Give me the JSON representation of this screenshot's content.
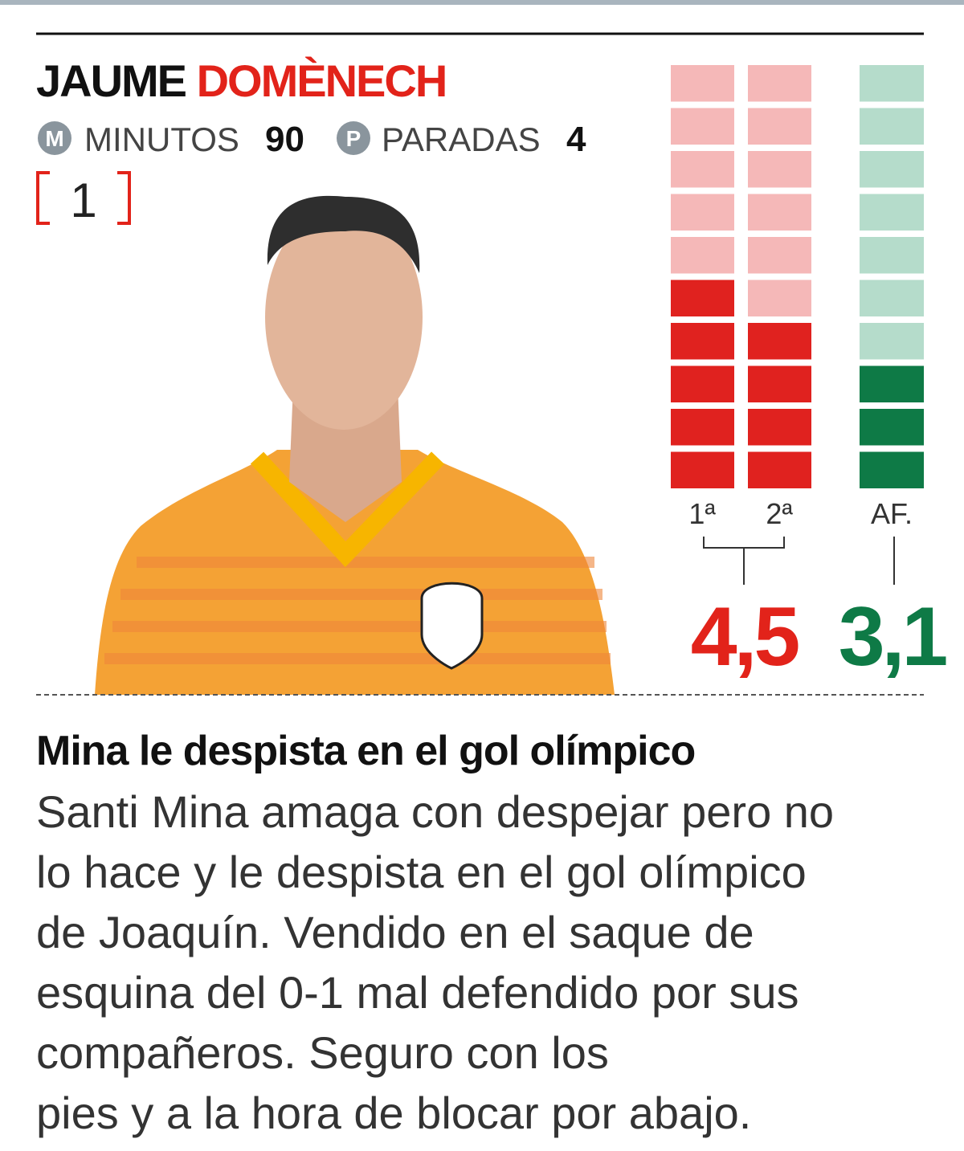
{
  "player": {
    "first_name": "JAUME",
    "last_name": "DOMÈNECH",
    "shirt_number": "1"
  },
  "stats": [
    {
      "icon": "M",
      "label": "MINUTOS",
      "value": 90
    },
    {
      "icon": "P",
      "label": "PARADAS",
      "value": 4
    }
  ],
  "ratings": {
    "total_blocks": 10,
    "halves": [
      {
        "label": "1ª",
        "blocks": 5
      },
      {
        "label": "2ª",
        "blocks": 4
      }
    ],
    "average": "4,5",
    "af": {
      "label": "AF.",
      "blocks": 3,
      "value": "3,1"
    }
  },
  "article": {
    "headline": "Mina le despista en el gol olímpico",
    "body": [
      "Santi Mina amaga con despejar pero no",
      "lo hace y le despista en el gol olímpico",
      "de Joaquín. Vendido en el saque de",
      "esquina del 0-1 mal defendido por sus",
      "compañeros. Seguro con los",
      "pies y a la hora de blocar por abajo."
    ]
  }
}
